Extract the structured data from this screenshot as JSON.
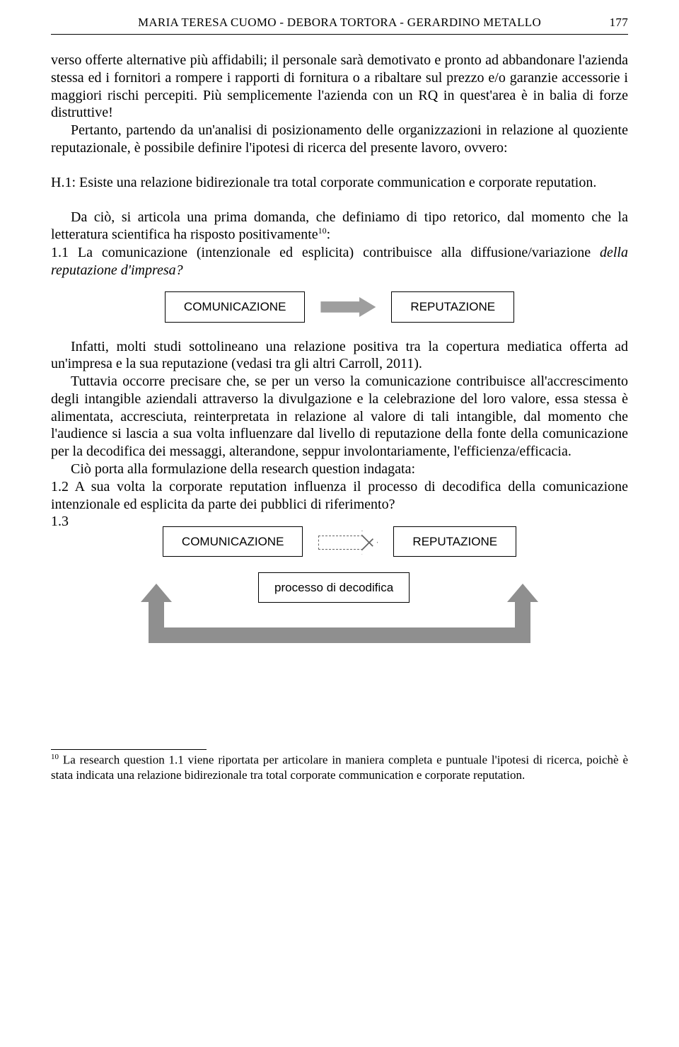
{
  "header": {
    "authors": "MARIA TERESA CUOMO - DEBORA TORTORA - GERARDINO METALLO",
    "page_number": "177"
  },
  "paragraphs": {
    "p1": "verso offerte alternative più affidabili; il personale sarà demotivato e pronto ad abbandonare l'azienda stessa ed i fornitori a rompere i rapporti di fornitura o a ribaltare sul prezzo e/o garanzie accessorie i maggiori rischi percepiti. Più semplicemente l'azienda con un RQ in quest'area è in balia di forze distruttive!",
    "p2": "Pertanto, partendo da un'analisi di posizionamento delle organizzazioni in relazione al quoziente reputazionale, è possibile definire l'ipotesi di ricerca del presente lavoro, ovvero:",
    "h1": "H.1: Esiste una relazione bidirezionale tra total corporate communication e corporate reputation.",
    "p3a": "Da ciò, si articola una prima domanda, che definiamo di tipo retorico, dal momento che la letteratura scientifica ha risposto positivamente",
    "p3_sup": "10",
    "p3b": ":",
    "q11a": "1.1 La comunicazione (intenzionale ed esplicita) contribuisce alla diffusione/variazione ",
    "q11b": "della reputazione d'impresa?",
    "p4": "Infatti, molti studi sottolineano una relazione positiva tra la copertura mediatica offerta ad un'impresa e la sua reputazione (vedasi tra gli altri Carroll, 2011).",
    "p5": "Tuttavia occorre precisare che, se per un verso la comunicazione contribuisce all'accrescimento degli intangible aziendali attraverso la divulgazione e la celebrazione del loro valore, essa stessa è alimentata, accresciuta, reinterpretata in relazione al valore di tali intangible, dal momento che l'audience si lascia a sua volta influenzare dal livello di reputazione della fonte della comunicazione per la decodifica dei messaggi, alterandone, seppur involontariamente, l'efficienza/efficacia.",
    "p6": "Ciò porta alla formulazione della research question indagata:",
    "q12": "1.2 A sua volta la corporate reputation influenza il processo di decodifica della comunicazione intenzionale ed esplicita da parte dei pubblici di riferimento?",
    "q13": "1.3"
  },
  "diagram1": {
    "left": "COMUNICAZIONE",
    "right": "REPUTAZIONE"
  },
  "diagram2": {
    "left": "COMUNICAZIONE",
    "right": "REPUTAZIONE",
    "process": "processo di decodifica"
  },
  "footnote": {
    "marker": "10",
    "text": " La research question 1.1 viene riportata per articolare in maniera completa e puntuale l'ipotesi di ricerca, poichè è stata indicata una relazione bidirezionale tra total corporate communication e corporate reputation."
  }
}
